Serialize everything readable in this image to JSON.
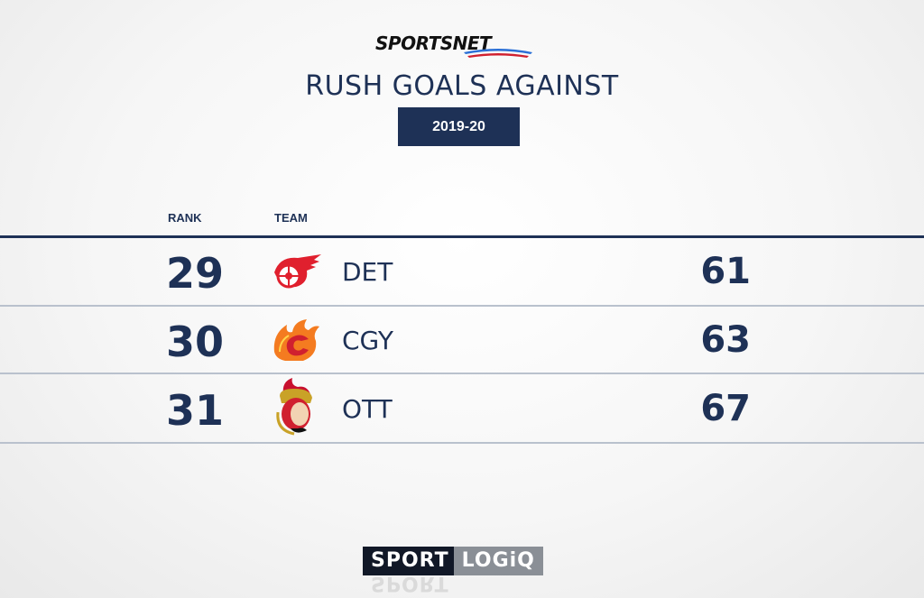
{
  "header": {
    "brand": "SPORTSNET",
    "title": "RUSH GOALS AGAINST",
    "season": "2019-20"
  },
  "table": {
    "columns": {
      "rank": "RANK",
      "team": "TEAM"
    },
    "rows": [
      {
        "rank": "29",
        "team": "DET",
        "value": "61",
        "crest": "red-wings-icon"
      },
      {
        "rank": "30",
        "team": "CGY",
        "value": "63",
        "crest": "flames-icon"
      },
      {
        "rank": "31",
        "team": "OTT",
        "value": "67",
        "crest": "senators-icon"
      }
    ]
  },
  "footer": {
    "brand_a": "SPORT",
    "brand_b": "LOGiQ"
  },
  "colors": {
    "navy": "#1e3156",
    "red": "#d0202f",
    "orange": "#f47b20"
  }
}
